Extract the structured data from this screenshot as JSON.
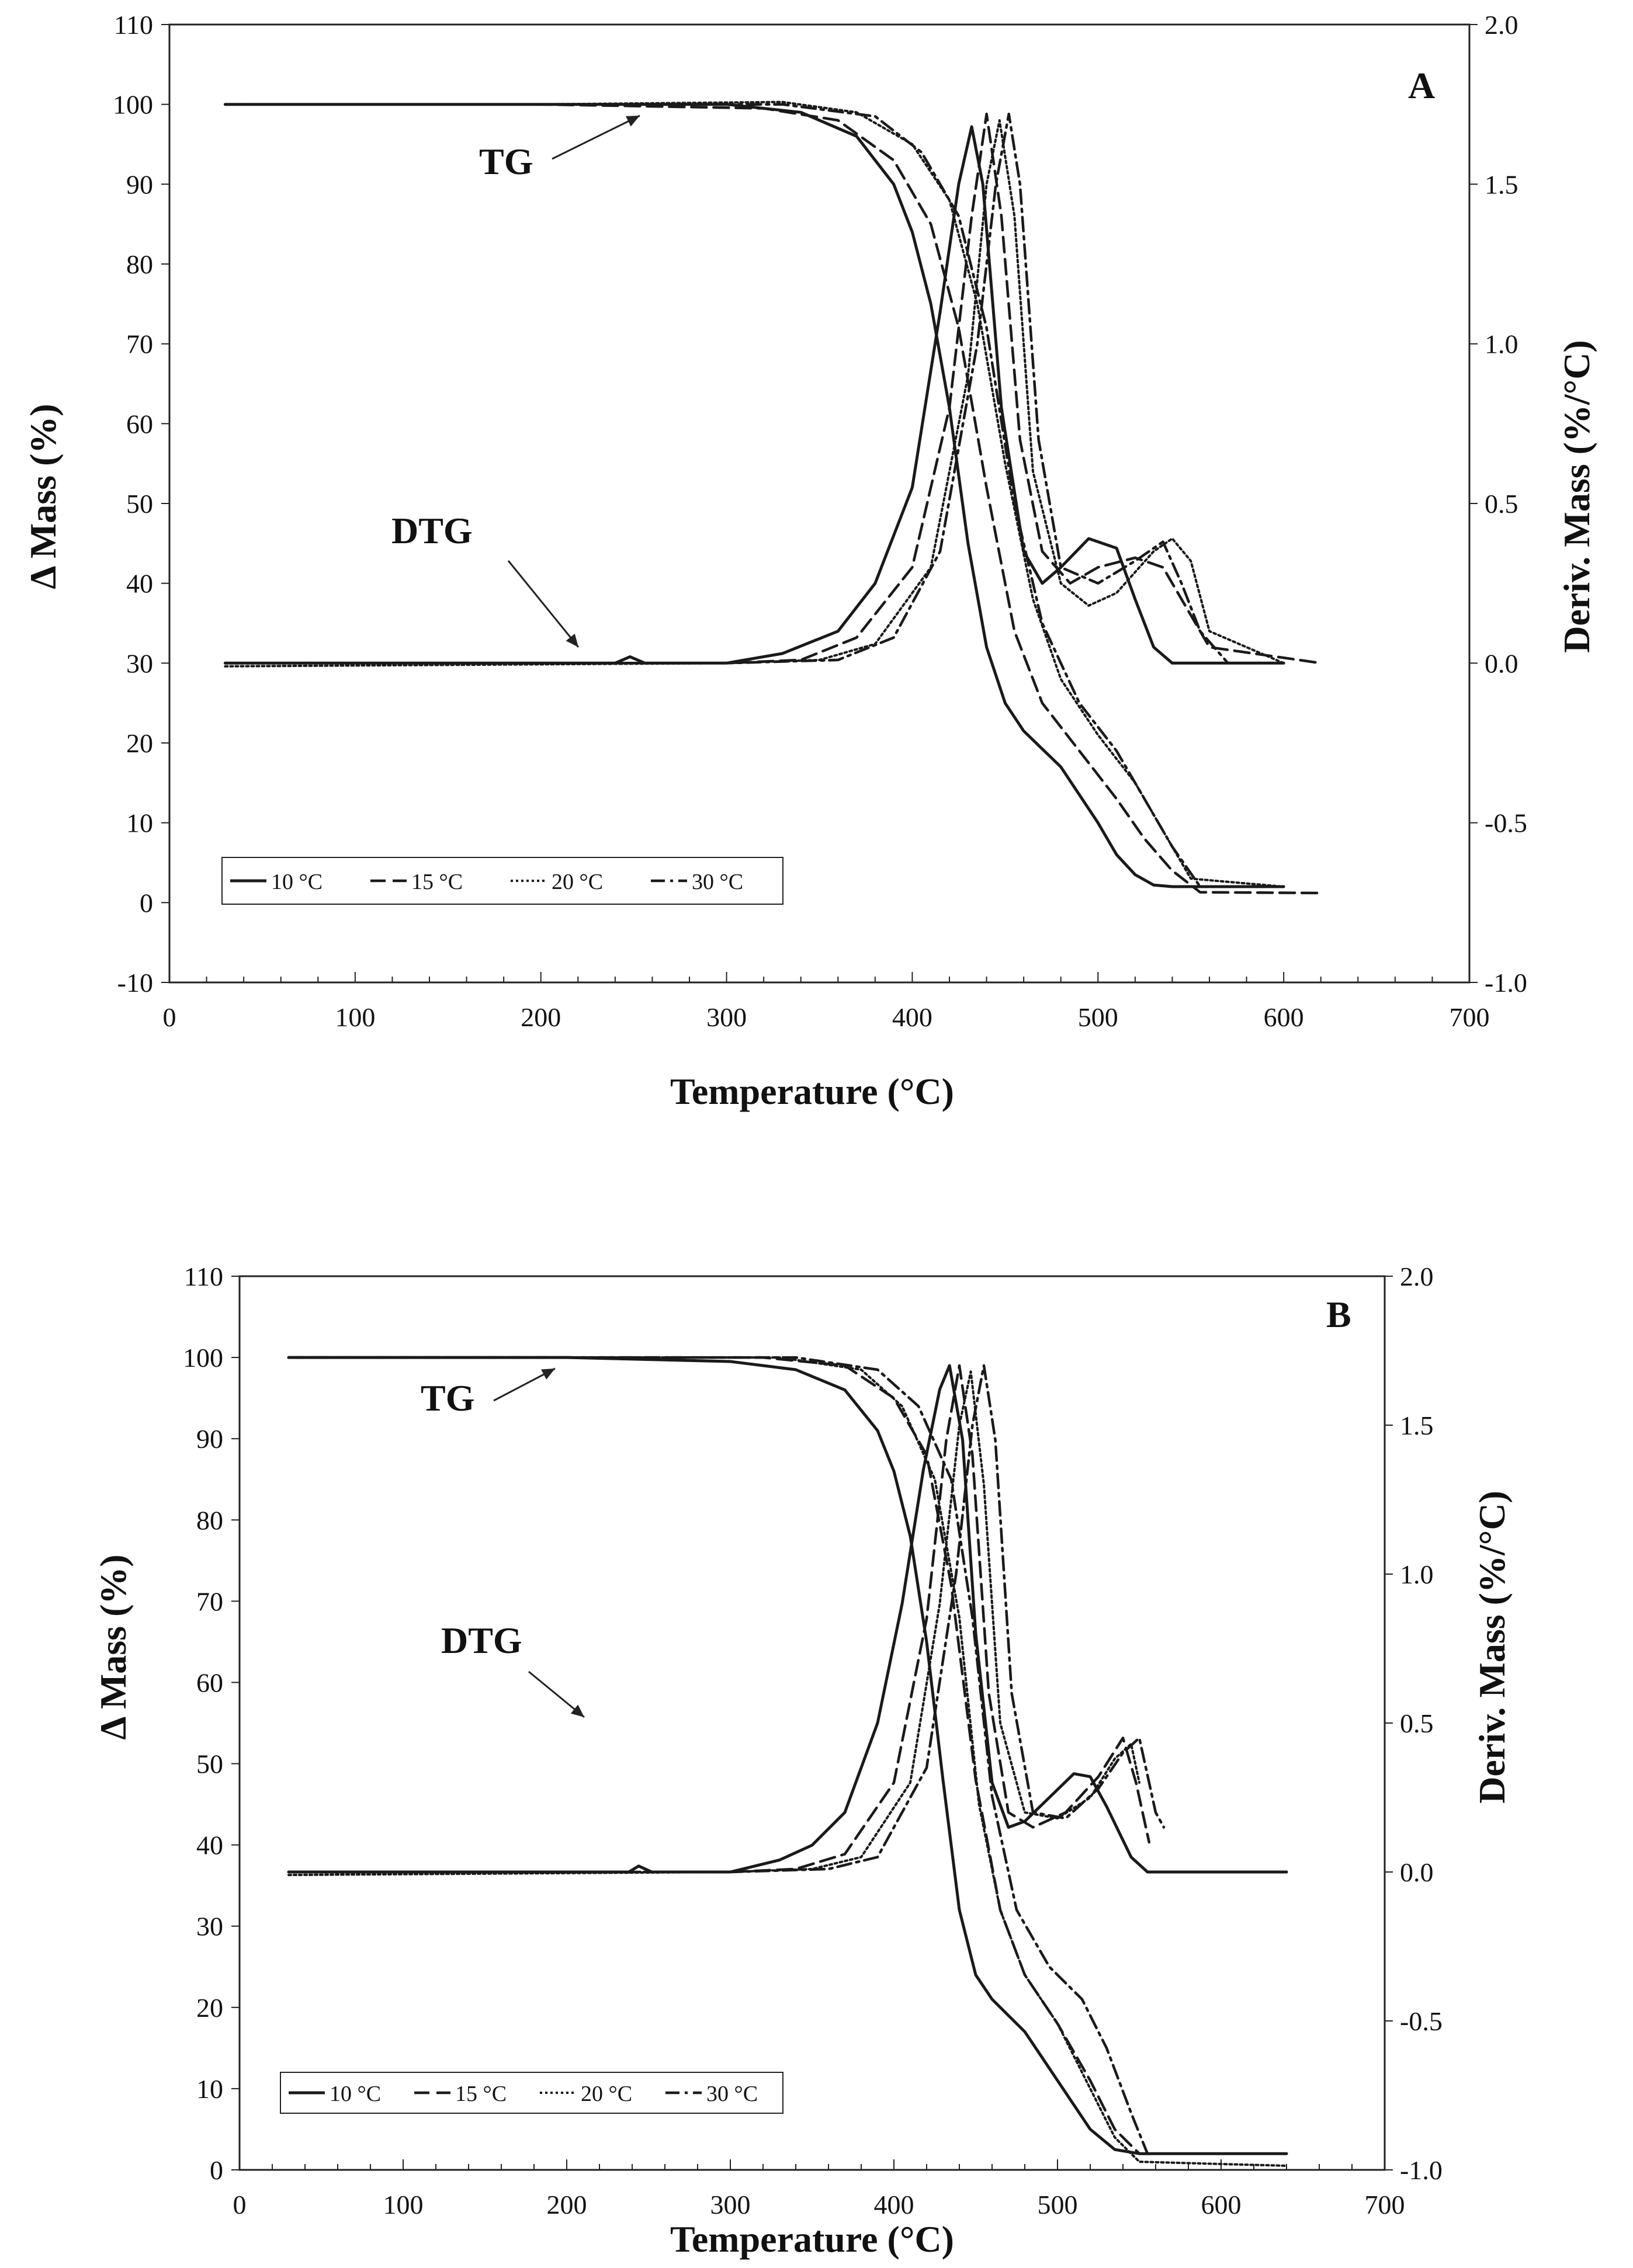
{
  "chart_data": [
    {
      "panel": "A",
      "type": "line",
      "xlabel": "Temperature (°C)",
      "ylabel_left": "Δ Mass  (%)",
      "ylabel_right": "Deriv. Mass (%/°C)",
      "xlim": [
        0,
        700
      ],
      "ylim_left": [
        -10,
        110
      ],
      "ylim_right": [
        -1.0,
        2.0
      ],
      "x_ticks": [
        "0",
        "100",
        "200",
        "300",
        "400",
        "500",
        "600",
        "700"
      ],
      "y_left_ticks": [
        "-10",
        "0",
        "10",
        "20",
        "30",
        "40",
        "50",
        "60",
        "70",
        "80",
        "90",
        "100",
        "110"
      ],
      "y_right_ticks": [
        "-1.0",
        "-0.5",
        "0.0",
        "0.5",
        "1.0",
        "1.5",
        "2.0"
      ],
      "annotations": [
        "TG",
        "DTG"
      ],
      "legend": [
        "10 °C",
        "15 °C",
        "20 °C",
        "30 °C"
      ],
      "tg_series": [
        {
          "name": "10 °C",
          "x": [
            30,
            200,
            300,
            340,
            370,
            390,
            400,
            410,
            420,
            430,
            440,
            450,
            460,
            480,
            500,
            510,
            520,
            530,
            540,
            600
          ],
          "y": [
            100,
            100,
            100,
            99,
            96,
            90,
            84,
            75,
            62,
            45,
            32,
            25,
            21.5,
            17,
            10,
            6,
            3.5,
            2.2,
            2,
            2
          ]
        },
        {
          "name": "15 °C",
          "x": [
            30,
            200,
            320,
            360,
            390,
            410,
            425,
            440,
            455,
            470,
            490,
            510,
            525,
            540,
            555,
            620
          ],
          "y": [
            100,
            100,
            99.5,
            98,
            93,
            85,
            72,
            52,
            34,
            25,
            19,
            13,
            8,
            4,
            1.3,
            1.2
          ]
        },
        {
          "name": "20 °C",
          "x": [
            30,
            200,
            330,
            370,
            400,
            420,
            435,
            450,
            465,
            480,
            500,
            520,
            535,
            550,
            600
          ],
          "y": [
            100,
            100,
            100.3,
            99,
            95,
            88,
            75,
            55,
            38,
            28,
            21,
            15,
            9,
            3,
            2
          ]
        },
        {
          "name": "30 °C",
          "x": [
            30,
            200,
            330,
            380,
            405,
            425,
            440,
            455,
            470,
            490,
            510,
            525,
            540,
            555,
            600
          ],
          "y": [
            100,
            100,
            100,
            98.5,
            94,
            86,
            72,
            50,
            35,
            25,
            19,
            13,
            7,
            2,
            2
          ]
        }
      ],
      "dtg_series": [
        {
          "name": "10 °C",
          "x": [
            30,
            200,
            240,
            248,
            256,
            300,
            330,
            360,
            380,
            400,
            415,
            425,
            432,
            438,
            448,
            460,
            470,
            480,
            495,
            510,
            520,
            530,
            540,
            600
          ],
          "y": [
            0,
            0,
            0,
            0.02,
            0,
            0,
            0.03,
            0.1,
            0.25,
            0.55,
            1.1,
            1.5,
            1.68,
            1.5,
            0.8,
            0.35,
            0.25,
            0.3,
            0.39,
            0.36,
            0.2,
            0.05,
            0,
            0
          ]
        },
        {
          "name": "15 °C",
          "x": [
            30,
            300,
            340,
            370,
            400,
            420,
            432,
            440,
            448,
            458,
            470,
            485,
            500,
            520,
            535,
            550,
            560,
            620
          ],
          "y": [
            0,
            0,
            0.01,
            0.08,
            0.3,
            0.8,
            1.4,
            1.72,
            1.4,
            0.7,
            0.35,
            0.25,
            0.3,
            0.33,
            0.3,
            0.15,
            0.05,
            0
          ]
        },
        {
          "name": "20 °C",
          "x": [
            30,
            300,
            350,
            380,
            410,
            430,
            440,
            447,
            455,
            465,
            480,
            495,
            510,
            530,
            540,
            550,
            560,
            600
          ],
          "y": [
            -0.01,
            0,
            0.01,
            0.06,
            0.3,
            0.9,
            1.5,
            1.7,
            1.4,
            0.6,
            0.25,
            0.18,
            0.22,
            0.35,
            0.39,
            0.32,
            0.1,
            0
          ]
        },
        {
          "name": "30 °C",
          "x": [
            30,
            300,
            360,
            390,
            415,
            435,
            445,
            452,
            458,
            468,
            480,
            500,
            520,
            535,
            545,
            555,
            570,
            600
          ],
          "y": [
            0,
            0,
            0.01,
            0.08,
            0.35,
            1.0,
            1.5,
            1.72,
            1.5,
            0.7,
            0.3,
            0.25,
            0.32,
            0.38,
            0.25,
            0.1,
            0,
            0
          ]
        }
      ]
    },
    {
      "panel": "B",
      "type": "line",
      "xlabel": "Temperature (°C)",
      "ylabel_left": "Δ Mass  (%)",
      "ylabel_right": "Deriv. Mass (%/°C)",
      "xlim": [
        0,
        700
      ],
      "ylim_left": [
        0,
        110
      ],
      "ylim_right": [
        -1.0,
        2.0
      ],
      "x_ticks": [
        "0",
        "100",
        "200",
        "300",
        "400",
        "500",
        "600",
        "700"
      ],
      "y_left_ticks": [
        "0",
        "10",
        "20",
        "30",
        "40",
        "50",
        "60",
        "70",
        "80",
        "90",
        "100",
        "110"
      ],
      "y_right_ticks": [
        "-1.0",
        "-0.5",
        "0.0",
        "0.5",
        "1.0",
        "1.5",
        "2.0"
      ],
      "annotations": [
        "TG",
        "DTG"
      ],
      "legend": [
        "10 °C",
        "15 °C",
        "20 °C",
        "30 °C"
      ],
      "tg_series": [
        {
          "name": "10 °C",
          "x": [
            30,
            200,
            300,
            340,
            370,
            390,
            400,
            410,
            420,
            430,
            440,
            450,
            460,
            480,
            500,
            520,
            535,
            550,
            640
          ],
          "y": [
            100,
            100,
            99.5,
            98.5,
            96,
            91,
            86,
            78,
            65,
            48,
            32,
            24,
            21,
            17,
            11,
            5,
            2.5,
            2,
            2
          ]
        },
        {
          "name": "15 °C",
          "x": [
            30,
            200,
            320,
            370,
            400,
            420,
            435,
            450,
            465,
            480,
            500,
            520,
            535,
            550,
            560
          ],
          "y": [
            100,
            100,
            100,
            99,
            95,
            88,
            72,
            48,
            32,
            24,
            18,
            11,
            5,
            2,
            2
          ]
        },
        {
          "name": "20 °C",
          "x": [
            30,
            200,
            330,
            380,
            405,
            425,
            440,
            452,
            465,
            480,
            500,
            520,
            535,
            550,
            640
          ],
          "y": [
            100,
            100,
            100,
            98.5,
            94,
            85,
            68,
            45,
            32,
            24,
            18,
            10,
            4,
            1,
            0.5
          ]
        },
        {
          "name": "30 °C",
          "x": [
            30,
            200,
            340,
            390,
            415,
            435,
            448,
            460,
            475,
            495,
            515,
            530,
            545,
            555,
            570
          ],
          "y": [
            100,
            100,
            100,
            98.5,
            94,
            85,
            68,
            46,
            32,
            25,
            21,
            15,
            7,
            2,
            2
          ]
        }
      ],
      "dtg_series": [
        {
          "name": "10 °C",
          "x": [
            30,
            200,
            238,
            244,
            252,
            300,
            330,
            350,
            370,
            390,
            405,
            418,
            428,
            434,
            442,
            450,
            460,
            470,
            480,
            495,
            510,
            520,
            530,
            545,
            555,
            640
          ],
          "y": [
            0,
            0,
            0,
            0.02,
            0,
            0,
            0.04,
            0.09,
            0.2,
            0.5,
            0.9,
            1.35,
            1.62,
            1.7,
            1.45,
            0.8,
            0.3,
            0.15,
            0.17,
            0.25,
            0.33,
            0.32,
            0.22,
            0.05,
            0,
            0
          ]
        },
        {
          "name": "15 °C",
          "x": [
            30,
            300,
            340,
            370,
            400,
            420,
            432,
            440,
            448,
            458,
            470,
            485,
            505,
            525,
            540,
            548,
            556
          ],
          "y": [
            0,
            0,
            0.01,
            0.06,
            0.3,
            0.85,
            1.45,
            1.7,
            1.4,
            0.6,
            0.2,
            0.15,
            0.2,
            0.32,
            0.45,
            0.3,
            0.1
          ]
        },
        {
          "name": "20 °C",
          "x": [
            30,
            300,
            350,
            380,
            410,
            428,
            440,
            447,
            455,
            465,
            480,
            500,
            520,
            535,
            545,
            550
          ],
          "y": [
            -0.01,
            0,
            0.01,
            0.05,
            0.3,
            0.9,
            1.5,
            1.68,
            1.3,
            0.5,
            0.2,
            0.18,
            0.25,
            0.38,
            0.43,
            0.3
          ]
        },
        {
          "name": "30 °C",
          "x": [
            30,
            300,
            360,
            390,
            420,
            438,
            448,
            455,
            462,
            472,
            485,
            505,
            525,
            540,
            550,
            560,
            565
          ],
          "y": [
            0,
            0,
            0.01,
            0.05,
            0.35,
            1.0,
            1.5,
            1.7,
            1.45,
            0.6,
            0.2,
            0.18,
            0.28,
            0.4,
            0.45,
            0.2,
            0.15
          ]
        }
      ]
    }
  ]
}
